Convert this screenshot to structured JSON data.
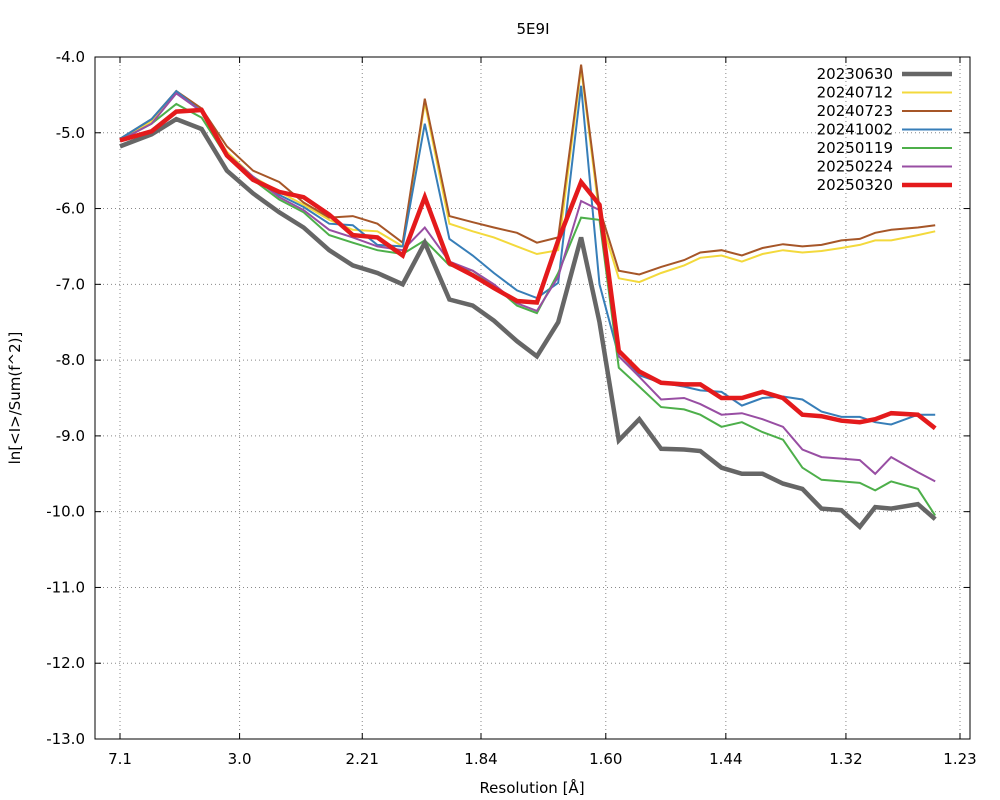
{
  "chart_data": {
    "type": "line",
    "title": "5E9I",
    "xlabel": "Resolution [Å]",
    "ylabel": "ln[<I>/Sum(f^2)]",
    "x_scale": "1/d^2",
    "xlim": [
      7.1,
      1.23
    ],
    "ylim": [
      -13.0,
      -4.0
    ],
    "x_ticks": [
      7.1,
      3.0,
      2.21,
      1.84,
      1.6,
      1.44,
      1.32,
      1.23
    ],
    "x_tick_labels": [
      "7.1",
      "3.0",
      "2.21",
      "1.84",
      "1.60",
      "1.44",
      "1.32",
      "1.23"
    ],
    "y_ticks": [
      -4.0,
      -5.0,
      -6.0,
      -7.0,
      -8.0,
      -9.0,
      -10.0,
      -11.0,
      -12.0,
      -13.0
    ],
    "y_tick_labels": [
      "-4.0",
      "-5.0",
      "-6.0",
      "-7.0",
      "-8.0",
      "-9.0",
      "-10.0",
      "-11.0",
      "-12.0",
      "-13.0"
    ],
    "grid": true,
    "legend_position": "top-right",
    "series": [
      {
        "name": "20230630",
        "color": "#666666",
        "line_width": 4.5,
        "x": [
          7.1,
          4.77,
          3.99,
          3.49,
          3.14,
          2.87,
          2.66,
          2.5,
          2.36,
          2.25,
          2.15,
          2.06,
          1.99,
          1.92,
          1.86,
          1.81,
          1.76,
          1.72,
          1.68,
          1.64,
          1.61,
          1.58,
          1.55,
          1.52,
          1.49,
          1.47,
          1.445,
          1.422,
          1.4,
          1.379,
          1.36,
          1.342,
          1.324,
          1.308,
          1.295,
          1.282,
          1.261,
          1.248
        ],
        "y": [
          -5.18,
          -5.02,
          -4.82,
          -4.95,
          -5.5,
          -5.8,
          -6.05,
          -6.25,
          -6.55,
          -6.75,
          -6.85,
          -7.0,
          -6.45,
          -7.2,
          -7.28,
          -7.48,
          -7.75,
          -7.95,
          -7.5,
          -6.38,
          -7.5,
          -9.06,
          -8.78,
          -9.17,
          -9.18,
          -9.2,
          -9.42,
          -9.5,
          -9.5,
          -9.63,
          -9.7,
          -9.96,
          -9.98,
          -10.2,
          -9.94,
          -9.96,
          -9.9,
          -10.1
        ]
      },
      {
        "name": "20240712",
        "color": "#f3d93c",
        "line_width": 2,
        "x": [
          7.1,
          4.77,
          3.99,
          3.49,
          3.14,
          2.87,
          2.66,
          2.5,
          2.36,
          2.25,
          2.15,
          2.06,
          1.99,
          1.92,
          1.86,
          1.81,
          1.76,
          1.72,
          1.68,
          1.64,
          1.61,
          1.58,
          1.55,
          1.52,
          1.49,
          1.47,
          1.445,
          1.422,
          1.4,
          1.379,
          1.36,
          1.342,
          1.324,
          1.308,
          1.295,
          1.282,
          1.261,
          1.248
        ],
        "y": [
          -5.1,
          -4.85,
          -4.45,
          -4.72,
          -5.25,
          -5.58,
          -5.78,
          -5.95,
          -6.15,
          -6.28,
          -6.3,
          -6.5,
          -4.6,
          -6.2,
          -6.3,
          -6.38,
          -6.5,
          -6.6,
          -6.55,
          -4.15,
          -6.1,
          -6.92,
          -6.97,
          -6.85,
          -6.75,
          -6.65,
          -6.62,
          -6.7,
          -6.6,
          -6.55,
          -6.58,
          -6.56,
          -6.52,
          -6.48,
          -6.42,
          -6.42,
          -6.35,
          -6.3
        ]
      },
      {
        "name": "20240723",
        "color": "#a65628",
        "line_width": 2,
        "x": [
          7.1,
          4.77,
          3.99,
          3.49,
          3.14,
          2.87,
          2.66,
          2.5,
          2.36,
          2.25,
          2.15,
          2.06,
          1.99,
          1.92,
          1.86,
          1.81,
          1.76,
          1.72,
          1.68,
          1.64,
          1.61,
          1.58,
          1.55,
          1.52,
          1.49,
          1.47,
          1.445,
          1.422,
          1.4,
          1.379,
          1.36,
          1.342,
          1.324,
          1.308,
          1.295,
          1.282,
          1.261,
          1.248
        ],
        "y": [
          -5.08,
          -4.82,
          -4.45,
          -4.68,
          -5.18,
          -5.5,
          -5.65,
          -5.92,
          -6.12,
          -6.1,
          -6.2,
          -6.45,
          -4.55,
          -6.1,
          -6.18,
          -6.25,
          -6.32,
          -6.45,
          -6.38,
          -4.1,
          -6.0,
          -6.82,
          -6.87,
          -6.77,
          -6.68,
          -6.58,
          -6.55,
          -6.62,
          -6.52,
          -6.47,
          -6.5,
          -6.48,
          -6.42,
          -6.4,
          -6.32,
          -6.28,
          -6.25,
          -6.22
        ]
      },
      {
        "name": "20241002",
        "color": "#377eb8",
        "line_width": 2,
        "x": [
          7.1,
          4.77,
          3.99,
          3.49,
          3.14,
          2.87,
          2.66,
          2.5,
          2.36,
          2.25,
          2.15,
          2.06,
          1.99,
          1.92,
          1.86,
          1.81,
          1.76,
          1.72,
          1.68,
          1.64,
          1.61,
          1.58,
          1.55,
          1.52,
          1.49,
          1.47,
          1.445,
          1.422,
          1.4,
          1.379,
          1.36,
          1.342,
          1.324,
          1.308,
          1.295,
          1.282,
          1.261,
          1.248
        ],
        "y": [
          -5.08,
          -4.82,
          -4.45,
          -4.72,
          -5.28,
          -5.58,
          -5.82,
          -5.98,
          -6.2,
          -6.22,
          -6.48,
          -6.5,
          -4.88,
          -6.4,
          -6.62,
          -6.85,
          -7.08,
          -7.18,
          -6.98,
          -4.38,
          -7.0,
          -7.95,
          -8.2,
          -8.3,
          -8.35,
          -8.4,
          -8.42,
          -8.6,
          -8.5,
          -8.48,
          -8.52,
          -8.68,
          -8.75,
          -8.75,
          -8.82,
          -8.85,
          -8.72,
          -8.72
        ]
      },
      {
        "name": "20250119",
        "color": "#4daf4a",
        "line_width": 2,
        "x": [
          7.1,
          4.77,
          3.99,
          3.49,
          3.14,
          2.87,
          2.66,
          2.5,
          2.36,
          2.25,
          2.15,
          2.06,
          1.99,
          1.92,
          1.86,
          1.81,
          1.76,
          1.72,
          1.68,
          1.64,
          1.61,
          1.58,
          1.55,
          1.52,
          1.49,
          1.47,
          1.445,
          1.422,
          1.4,
          1.379,
          1.36,
          1.342,
          1.324,
          1.308,
          1.295,
          1.282,
          1.261,
          1.248
        ],
        "y": [
          -5.1,
          -4.88,
          -4.62,
          -4.8,
          -5.32,
          -5.62,
          -5.88,
          -6.05,
          -6.35,
          -6.45,
          -6.55,
          -6.6,
          -6.42,
          -6.75,
          -6.82,
          -7.02,
          -7.28,
          -7.38,
          -6.85,
          -6.12,
          -6.15,
          -8.1,
          -8.35,
          -8.62,
          -8.65,
          -8.72,
          -8.88,
          -8.82,
          -8.95,
          -9.05,
          -9.42,
          -9.58,
          -9.6,
          -9.62,
          -9.72,
          -9.6,
          -9.7,
          -10.05
        ]
      },
      {
        "name": "20250224",
        "color": "#984ea3",
        "line_width": 2,
        "x": [
          7.1,
          4.77,
          3.99,
          3.49,
          3.14,
          2.87,
          2.66,
          2.5,
          2.36,
          2.25,
          2.15,
          2.06,
          1.99,
          1.92,
          1.86,
          1.81,
          1.76,
          1.72,
          1.68,
          1.64,
          1.61,
          1.58,
          1.55,
          1.52,
          1.49,
          1.47,
          1.445,
          1.422,
          1.4,
          1.379,
          1.36,
          1.342,
          1.324,
          1.308,
          1.295,
          1.282,
          1.261,
          1.248
        ],
        "y": [
          -5.1,
          -4.88,
          -4.48,
          -4.72,
          -5.28,
          -5.58,
          -5.85,
          -6.02,
          -6.28,
          -6.38,
          -6.5,
          -6.55,
          -6.25,
          -6.7,
          -6.82,
          -7.0,
          -7.25,
          -7.35,
          -6.9,
          -5.9,
          -6.02,
          -7.95,
          -8.22,
          -8.52,
          -8.5,
          -8.58,
          -8.72,
          -8.7,
          -8.78,
          -8.88,
          -9.18,
          -9.28,
          -9.3,
          -9.32,
          -9.5,
          -9.28,
          -9.48,
          -9.6
        ]
      },
      {
        "name": "20250320",
        "color": "#e41a1c",
        "line_width": 4.5,
        "x": [
          7.1,
          4.77,
          3.99,
          3.49,
          3.14,
          2.87,
          2.66,
          2.5,
          2.36,
          2.25,
          2.15,
          2.06,
          1.99,
          1.92,
          1.86,
          1.81,
          1.76,
          1.72,
          1.68,
          1.64,
          1.61,
          1.58,
          1.55,
          1.52,
          1.49,
          1.47,
          1.445,
          1.422,
          1.4,
          1.379,
          1.36,
          1.342,
          1.324,
          1.308,
          1.295,
          1.282,
          1.261,
          1.248
        ],
        "y": [
          -5.1,
          -4.98,
          -4.72,
          -4.7,
          -5.3,
          -5.62,
          -5.78,
          -5.85,
          -6.08,
          -6.35,
          -6.38,
          -6.62,
          -5.85,
          -6.72,
          -6.88,
          -7.05,
          -7.22,
          -7.24,
          -6.42,
          -5.65,
          -5.95,
          -7.88,
          -8.15,
          -8.3,
          -8.32,
          -8.32,
          -8.5,
          -8.5,
          -8.42,
          -8.5,
          -8.72,
          -8.74,
          -8.8,
          -8.82,
          -8.78,
          -8.7,
          -8.72,
          -8.9
        ]
      }
    ]
  }
}
